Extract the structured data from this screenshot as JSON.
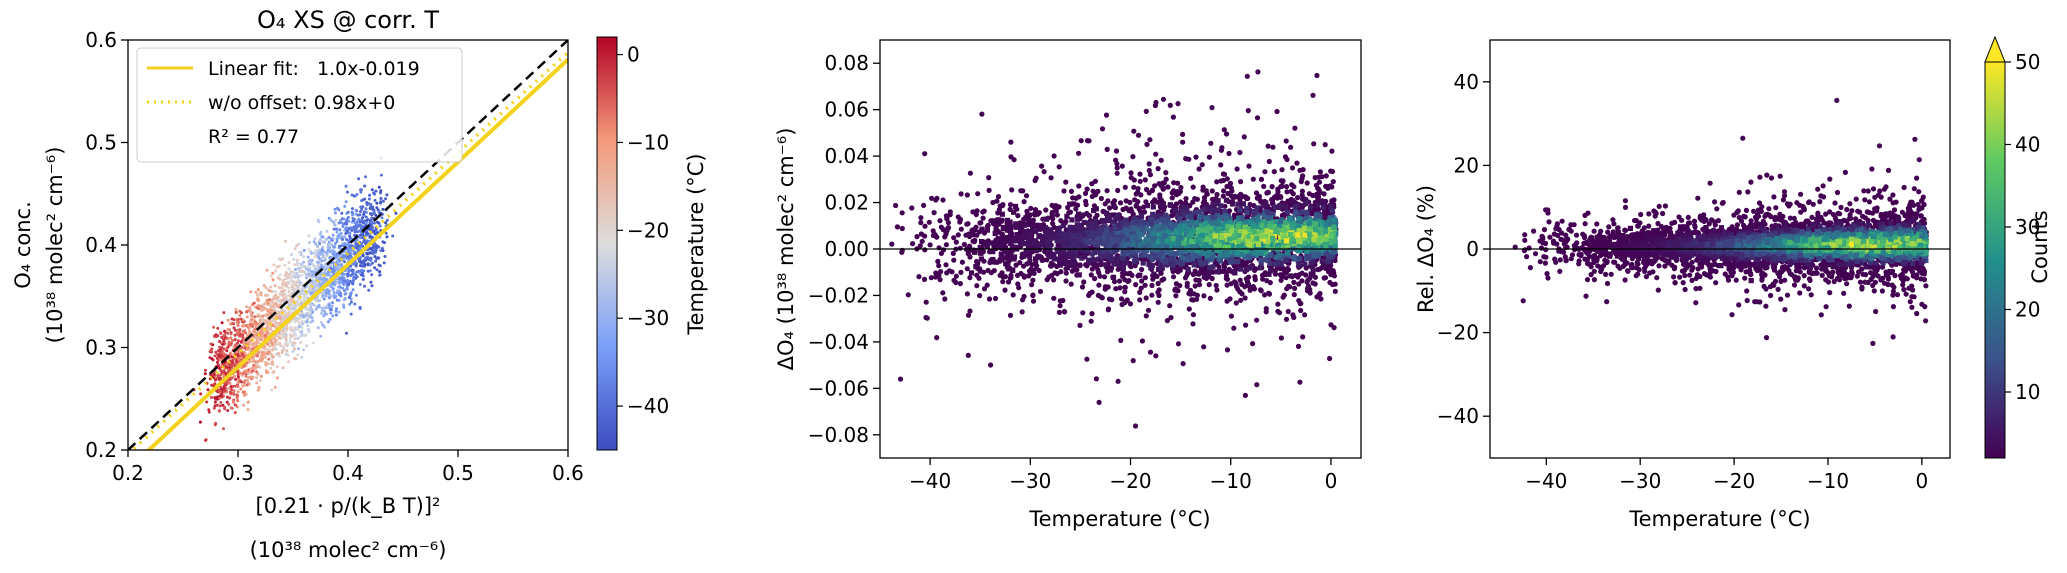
{
  "chart_data": [
    {
      "type": "scatter",
      "title": "O₄ XS @ corr. T",
      "xlabel_line1": "[0.21 · p/(k_B T)]²",
      "xlabel_line2": "(10³⁸ molec² cm⁻⁶)",
      "ylabel_line1": "O₄ conc.",
      "ylabel_line2": "(10³⁸ molec² cm⁻⁶)",
      "xlim": [
        0.2,
        0.6
      ],
      "ylim": [
        0.2,
        0.6
      ],
      "xticks": [
        "0.2",
        "0.3",
        "0.4",
        "0.5",
        "0.6"
      ],
      "yticks": [
        "0.2",
        "0.3",
        "0.4",
        "0.5",
        "0.6"
      ],
      "legend_placement": "top-left",
      "legend": [
        {
          "label": "Linear fit:   1.0x-0.019",
          "style": "solid",
          "color": "#f2d21a"
        },
        {
          "label": "w/o offset: 0.98x+0",
          "style": "dotted",
          "color": "#f2d21a"
        },
        {
          "label": "R² = 0.77",
          "style": "none"
        }
      ],
      "lines": [
        {
          "name": "Linear fit",
          "slope": 1.0,
          "intercept": -0.019
        },
        {
          "name": "w/o offset",
          "slope": 0.98,
          "intercept": 0
        },
        {
          "name": "1:1",
          "slope": 1.0,
          "intercept": 0
        }
      ],
      "cluster": {
        "x_range": [
          0.27,
          0.43
        ],
        "y_range": [
          0.22,
          0.47
        ],
        "color_variable": "Temperature (°C)"
      },
      "colorbar": {
        "label": "Temperature (°C)",
        "range": [
          -45,
          2
        ],
        "ticks": [
          "0",
          "−10",
          "−20",
          "−30",
          "−40"
        ],
        "colormap": "coolwarm",
        "low_color": "#3b4cc0",
        "mid_color": "#dddddd",
        "high_color": "#b40426"
      }
    },
    {
      "type": "heatmap",
      "title": "",
      "xlabel": "Temperature (°C)",
      "ylabel": "ΔO₄ (10³⁸ molec² cm⁻⁶)",
      "xlim": [
        -45,
        3
      ],
      "ylim": [
        -0.09,
        0.09
      ],
      "xticks": [
        "−40",
        "−30",
        "−20",
        "−10",
        "0"
      ],
      "yticks": [
        "0.08",
        "0.06",
        "0.04",
        "0.02",
        "0.00",
        "−0.02",
        "−0.04",
        "−0.06",
        "−0.08"
      ],
      "zero_line": 0,
      "cluster": {
        "x_range": [
          -45,
          1
        ],
        "y_range": [
          -0.045,
          0.058
        ],
        "density_peak_x": -5,
        "density_peak_y": 0.005
      }
    },
    {
      "type": "heatmap",
      "title": "",
      "xlabel": "Temperature (°C)",
      "ylabel": "Rel. ΔO₄ (%)",
      "xlim": [
        -46,
        3
      ],
      "ylim": [
        -50,
        50
      ],
      "xticks": [
        "−40",
        "−30",
        "−20",
        "−10",
        "0"
      ],
      "yticks": [
        "40",
        "20",
        "0",
        "−20",
        "−40"
      ],
      "zero_line": 0,
      "cluster": {
        "x_range": [
          -44,
          1
        ],
        "y_range": [
          -16,
          26
        ],
        "density_peak_x": -5,
        "density_peak_y": 2
      },
      "colorbar": {
        "label": "Counts",
        "range": [
          2,
          50
        ],
        "ticks": [
          "10",
          "20",
          "30",
          "40",
          "50"
        ],
        "colormap": "viridis",
        "extend": "max"
      }
    }
  ]
}
